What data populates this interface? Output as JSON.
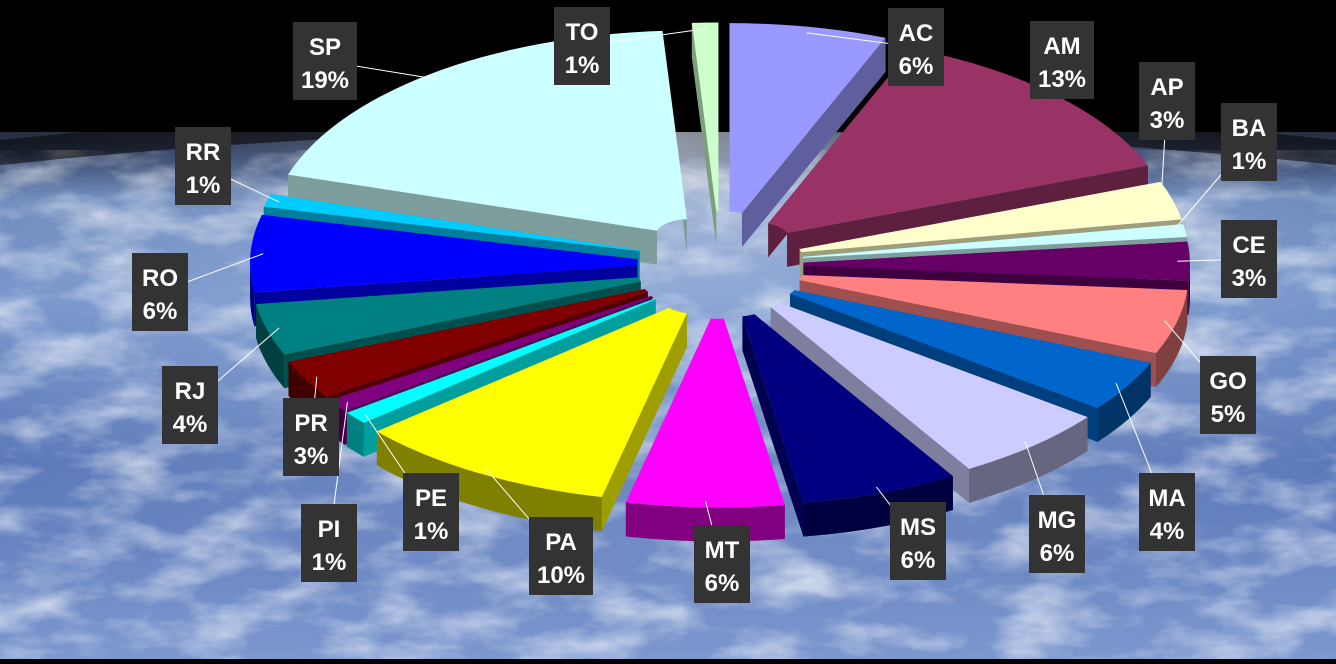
{
  "chart_data": {
    "type": "pie",
    "style": "3d-exploded",
    "background": "earth-from-space-photo",
    "label_box_color": "#333333",
    "label_text_color": "#ffffff",
    "slices": [
      {
        "label": "AC",
        "value": 6,
        "percent": "6%",
        "color": "#9999ff"
      },
      {
        "label": "AM",
        "value": 13,
        "percent": "13%",
        "color": "#993366"
      },
      {
        "label": "AP",
        "value": 3,
        "percent": "3%",
        "color": "#ffffcc"
      },
      {
        "label": "BA",
        "value": 1,
        "percent": "1%",
        "color": "#ccffff"
      },
      {
        "label": "CE",
        "value": 3,
        "percent": "3%",
        "color": "#660066"
      },
      {
        "label": "GO",
        "value": 5,
        "percent": "5%",
        "color": "#ff8080"
      },
      {
        "label": "MA",
        "value": 4,
        "percent": "4%",
        "color": "#0066cc"
      },
      {
        "label": "MG",
        "value": 6,
        "percent": "6%",
        "color": "#ccccff"
      },
      {
        "label": "MS",
        "value": 6,
        "percent": "6%",
        "color": "#000080"
      },
      {
        "label": "MT",
        "value": 6,
        "percent": "6%",
        "color": "#ff00ff"
      },
      {
        "label": "PA",
        "value": 10,
        "percent": "10%",
        "color": "#ffff00"
      },
      {
        "label": "PE",
        "value": 1,
        "percent": "1%",
        "color": "#00ffff"
      },
      {
        "label": "PI",
        "value": 1,
        "percent": "1%",
        "color": "#800080"
      },
      {
        "label": "PR",
        "value": 3,
        "percent": "3%",
        "color": "#800000"
      },
      {
        "label": "RJ",
        "value": 4,
        "percent": "4%",
        "color": "#008080"
      },
      {
        "label": "RO",
        "value": 6,
        "percent": "6%",
        "color": "#0000ff"
      },
      {
        "label": "RR",
        "value": 1,
        "percent": "1%",
        "color": "#00ccff"
      },
      {
        "label": "SP",
        "value": 19,
        "percent": "19%",
        "color": "#ccffff"
      },
      {
        "label": "TO",
        "value": 1,
        "percent": "1%",
        "color": "#ccffcc"
      }
    ]
  }
}
